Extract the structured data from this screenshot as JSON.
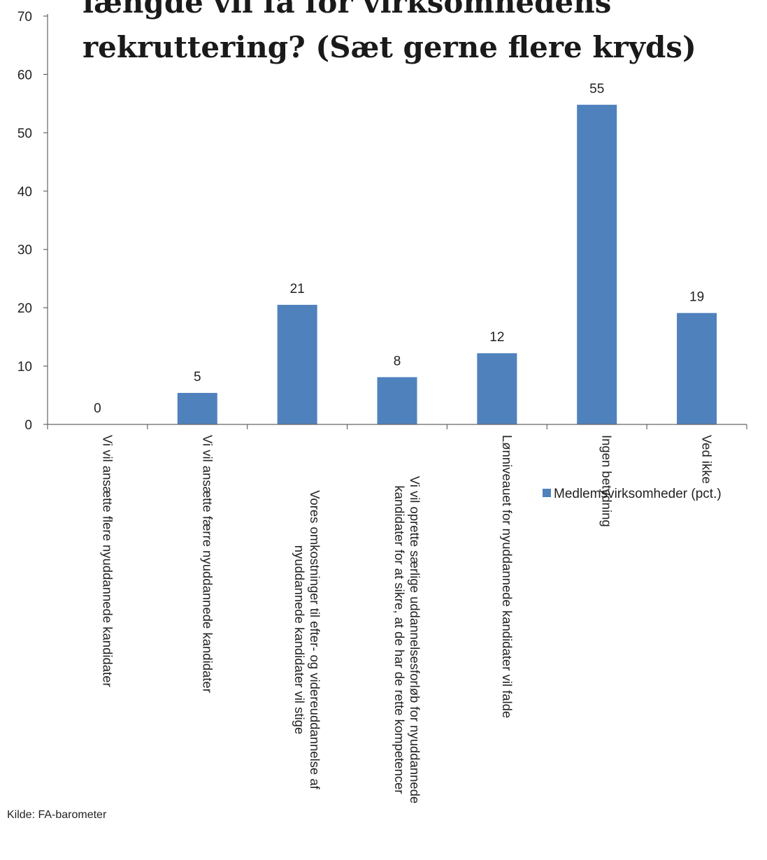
{
  "chart_data": {
    "type": "bar",
    "title_lines": [
      "længde vil få for virksomhedens",
      "rekruttering? (Sæt gerne flere kryds)"
    ],
    "categories": [
      [
        "Vi vil ansætte flere nyuddannede kandidater"
      ],
      [
        "Vi vil ansætte færre nyuddannede kandidater"
      ],
      [
        "Vores omkostninger til efter- og videreuddannelse af",
        "nyuddannede kandidater vil stige"
      ],
      [
        "Vi vil oprette særlige uddannelsesforløb for nyuddannede",
        "kandidater for at sikre, at de har de rette kompetencer"
      ],
      [
        "Lønniveauet for nyuddannede kandidater vil falde"
      ],
      [
        "Ingen betydning"
      ],
      [
        "Ved ikke"
      ]
    ],
    "series": [
      {
        "name": "Medlemsvirksomheder (pct.)",
        "color": "#4f81bd",
        "values": [
          0,
          5.4,
          20.5,
          8.1,
          12.2,
          54.8,
          19.1
        ],
        "labels": [
          "0",
          "5",
          "21",
          "8",
          "12",
          "55",
          "19"
        ]
      }
    ],
    "ylim": [
      0,
      70
    ],
    "yticks": [
      "0",
      "10",
      "20",
      "30",
      "40",
      "50",
      "60",
      "70"
    ],
    "legend_position": "right",
    "grid": false,
    "source": "Kilde: FA-barometer"
  }
}
